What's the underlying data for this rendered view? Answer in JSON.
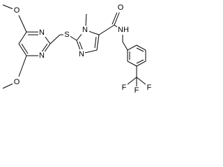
{
  "atoms": [
    {
      "label": "O"
    },
    {
      "label": "N"
    },
    {
      "label": "N"
    },
    {
      "label": "O"
    },
    {
      "label": "S"
    },
    {
      "label": "N"
    },
    {
      "label": "N"
    },
    {
      "label": "O"
    },
    {
      "label": "NH"
    },
    {
      "label": "F"
    },
    {
      "label": "F"
    },
    {
      "label": "F"
    }
  ]
}
